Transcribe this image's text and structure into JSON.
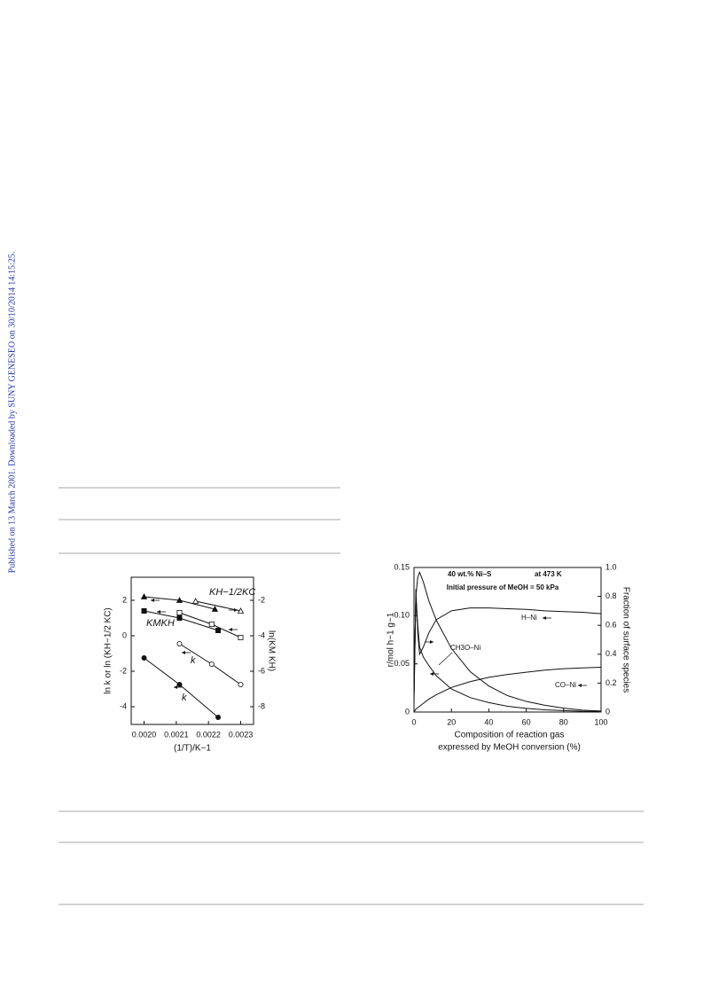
{
  "sidebar": "Published on 13 March 2001. Downloaded by SUNY GENESEO on 30/10/2014 14:15:25.",
  "chart_data": [
    {
      "type": "scatter",
      "xlabel": "(1/T)/K−1",
      "ylabel": "ln k or ln (KH−1/2 KC)",
      "y2label": "ln(KM KH)",
      "xlim": [
        0.00196,
        0.00234
      ],
      "xticks": [
        {
          "value": 0.002,
          "label": "0.0020"
        },
        {
          "value": 0.0021,
          "label": "0.0021"
        },
        {
          "value": 0.0022,
          "label": "0.0022"
        },
        {
          "value": 0.0023,
          "label": "0.0023"
        }
      ],
      "ylim": [
        -5,
        3.3
      ],
      "yticks": [
        -4,
        -2,
        0,
        2
      ],
      "y2lim": [
        -9,
        -0.7
      ],
      "y2ticks": [
        -8,
        -6,
        -4,
        -2
      ],
      "color": "#111",
      "annotations": [
        "KH−1/2KC",
        "KMKH",
        "k",
        "k"
      ],
      "series": [
        {
          "marker": "triangle",
          "filled": true,
          "axis": "y",
          "x": [
            0.002,
            0.00211,
            0.00222
          ],
          "values": [
            2.2,
            2.0,
            1.5
          ]
        },
        {
          "marker": "triangle",
          "filled": false,
          "axis": "y2",
          "x": [
            0.00216,
            0.0023
          ],
          "values": [
            -2.05,
            -2.6
          ]
        },
        {
          "marker": "square",
          "filled": true,
          "axis": "y",
          "x": [
            0.002,
            0.00211,
            0.00223
          ],
          "values": [
            1.4,
            1.0,
            0.3
          ]
        },
        {
          "marker": "square",
          "filled": false,
          "axis": "y2",
          "x": [
            0.00211,
            0.00221,
            0.0023
          ],
          "values": [
            -2.7,
            -3.35,
            -4.1
          ]
        },
        {
          "marker": "circle",
          "filled": false,
          "axis": "y",
          "x": [
            0.00211,
            0.00221,
            0.0023
          ],
          "values": [
            -0.45,
            -1.6,
            -2.75
          ]
        },
        {
          "marker": "circle",
          "filled": true,
          "axis": "y",
          "x": [
            0.002,
            0.00211,
            0.00223
          ],
          "values": [
            -1.25,
            -2.75,
            -4.6
          ]
        }
      ]
    },
    {
      "type": "line",
      "title_lines": [
        "40 wt.% Ni–S",
        "at 473 K",
        "Initial pressure of MeOH = 50 kPa"
      ],
      "xlabel": [
        "Composition of reaction gas",
        "expressed by MeOH conversion (%)"
      ],
      "ylabel": "r/mol h−1 g−1",
      "y2label": "Fraction of surface species",
      "xlim": [
        0,
        100
      ],
      "xticks": [
        0,
        20,
        40,
        60,
        80,
        100
      ],
      "ylim": [
        0,
        0.15
      ],
      "yticks": [
        0,
        0.05,
        {
          "value": 0.1,
          "label": "0.10"
        },
        0.15
      ],
      "y2lim": [
        0,
        1
      ],
      "y2ticks": [
        0,
        0.2,
        0.4,
        0.6,
        0.8,
        {
          "value": 1,
          "label": "1.0"
        }
      ],
      "color": "#111",
      "annotations": [
        "H–Ni",
        "CH3O–Ni",
        "CO–Ni"
      ],
      "x": [
        0,
        1,
        2,
        3,
        5,
        8,
        12,
        20,
        30,
        40,
        50,
        60,
        70,
        80,
        90,
        100
      ],
      "series": [
        {
          "axis": "y",
          "values": [
            0.02,
            0.12,
            0.14,
            0.145,
            0.135,
            0.115,
            0.095,
            0.066,
            0.042,
            0.027,
            0.017,
            0.011,
            0.007,
            0.004,
            0.002,
            0.001
          ]
        },
        {
          "axis": "y2",
          "values": [
            0.05,
            0.85,
            0.55,
            0.4,
            0.45,
            0.55,
            0.64,
            0.7,
            0.72,
            0.72,
            0.715,
            0.71,
            0.7,
            0.695,
            0.69,
            0.68
          ]
        },
        {
          "axis": "y2",
          "values": [
            0.1,
            0.8,
            0.6,
            0.45,
            0.38,
            0.32,
            0.25,
            0.16,
            0.1,
            0.065,
            0.04,
            0.025,
            0.015,
            0.01,
            0.005,
            0.003
          ]
        },
        {
          "axis": "y2",
          "values": [
            0,
            0.02,
            0.03,
            0.04,
            0.06,
            0.09,
            0.12,
            0.17,
            0.21,
            0.24,
            0.26,
            0.275,
            0.29,
            0.3,
            0.305,
            0.31
          ]
        }
      ]
    }
  ]
}
